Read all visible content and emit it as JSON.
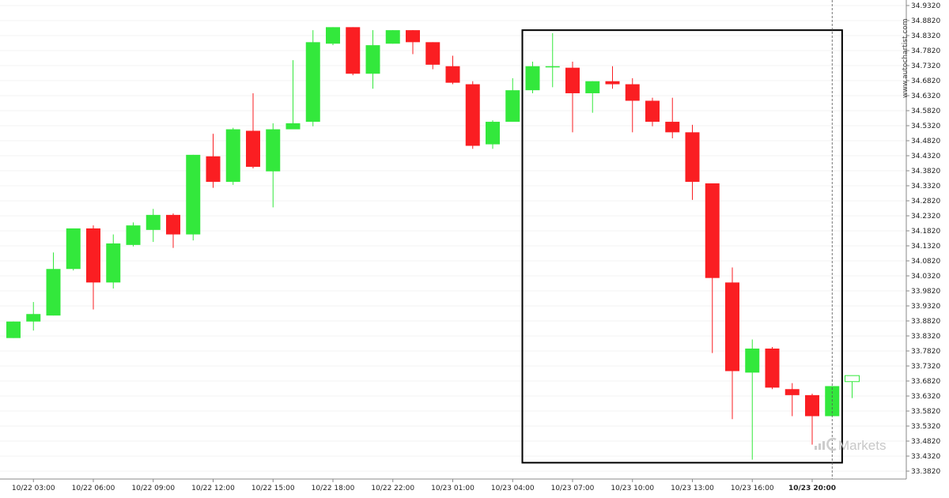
{
  "watermark": "www.autochartist.com",
  "brand": "Markets",
  "colors": {
    "up": "#33e83c",
    "down": "#fa1e22",
    "wick_up": "#33e83c",
    "wick_down": "#fa1e22",
    "box": "#000000",
    "grid": "#e8e8e8"
  },
  "chart_data": {
    "type": "candlestick",
    "title": "",
    "xlabel": "",
    "ylabel": "",
    "ylim": [
      33.37,
      34.93
    ],
    "y_ticks": [
      "34.9320",
      "34.8820",
      "34.8320",
      "34.7820",
      "34.7320",
      "34.6820",
      "34.6320",
      "34.5820",
      "34.5320",
      "34.4820",
      "34.4320",
      "34.3820",
      "34.3320",
      "34.2820",
      "34.2320",
      "34.1820",
      "34.1320",
      "34.0820",
      "34.0320",
      "33.9820",
      "33.9320",
      "33.8820",
      "33.8320",
      "33.7820",
      "33.7320",
      "33.6820",
      "33.6320",
      "33.5820",
      "33.5320",
      "33.4820",
      "33.4320",
      "33.3820"
    ],
    "x_ticks": [
      {
        "label": "10/22 03:00",
        "index": 1
      },
      {
        "label": "10/22 06:00",
        "index": 4
      },
      {
        "label": "10/22 09:00",
        "index": 7
      },
      {
        "label": "10/22 12:00",
        "index": 10
      },
      {
        "label": "10/22 15:00",
        "index": 13
      },
      {
        "label": "10/22 18:00",
        "index": 16
      },
      {
        "label": "10/22 22:00",
        "index": 19
      },
      {
        "label": "10/23 01:00",
        "index": 22
      },
      {
        "label": "10/23 04:00",
        "index": 25
      },
      {
        "label": "10/23 07:00",
        "index": 28
      },
      {
        "label": "10/23 10:00",
        "index": 31
      },
      {
        "label": "10/23 13:00",
        "index": 34
      },
      {
        "label": "10/23 16:00",
        "index": 37
      },
      {
        "label": "10/23 20:00",
        "index": 40,
        "bold": true
      }
    ],
    "candles": [
      {
        "o": 33.825,
        "h": 33.88,
        "l": 33.825,
        "c": 33.88
      },
      {
        "o": 33.88,
        "h": 33.945,
        "l": 33.85,
        "c": 33.905
      },
      {
        "o": 33.9,
        "h": 34.11,
        "l": 33.9,
        "c": 34.055
      },
      {
        "o": 34.055,
        "h": 34.19,
        "l": 34.05,
        "c": 34.19
      },
      {
        "o": 34.19,
        "h": 34.2,
        "l": 33.92,
        "c": 34.01
      },
      {
        "o": 34.01,
        "h": 34.17,
        "l": 33.99,
        "c": 34.14
      },
      {
        "o": 34.135,
        "h": 34.21,
        "l": 34.13,
        "c": 34.2
      },
      {
        "o": 34.185,
        "h": 34.255,
        "l": 34.145,
        "c": 34.235
      },
      {
        "o": 34.235,
        "h": 34.24,
        "l": 34.125,
        "c": 34.17
      },
      {
        "o": 34.17,
        "h": 34.435,
        "l": 34.15,
        "c": 34.435
      },
      {
        "o": 34.43,
        "h": 34.505,
        "l": 34.325,
        "c": 34.345
      },
      {
        "o": 34.345,
        "h": 34.525,
        "l": 34.335,
        "c": 34.52
      },
      {
        "o": 34.515,
        "h": 34.64,
        "l": 34.39,
        "c": 34.395
      },
      {
        "o": 34.38,
        "h": 34.54,
        "l": 34.26,
        "c": 34.52
      },
      {
        "o": 34.52,
        "h": 34.75,
        "l": 34.52,
        "c": 34.54
      },
      {
        "o": 34.545,
        "h": 34.85,
        "l": 34.53,
        "c": 34.81
      },
      {
        "o": 34.805,
        "h": 34.86,
        "l": 34.8,
        "c": 34.86
      },
      {
        "o": 34.86,
        "h": 34.86,
        "l": 34.7,
        "c": 34.705
      },
      {
        "o": 34.705,
        "h": 34.85,
        "l": 34.655,
        "c": 34.8
      },
      {
        "o": 34.805,
        "h": 34.85,
        "l": 34.805,
        "c": 34.85
      },
      {
        "o": 34.85,
        "h": 34.85,
        "l": 34.77,
        "c": 34.81
      },
      {
        "o": 34.81,
        "h": 34.81,
        "l": 34.72,
        "c": 34.735
      },
      {
        "o": 34.73,
        "h": 34.765,
        "l": 34.67,
        "c": 34.675
      },
      {
        "o": 34.67,
        "h": 34.68,
        "l": 34.455,
        "c": 34.465
      },
      {
        "o": 34.47,
        "h": 34.55,
        "l": 34.455,
        "c": 34.545
      },
      {
        "o": 34.545,
        "h": 34.69,
        "l": 34.545,
        "c": 34.65
      },
      {
        "o": 34.65,
        "h": 34.745,
        "l": 34.64,
        "c": 34.73
      },
      {
        "o": 34.73,
        "h": 34.84,
        "l": 34.66,
        "c": 34.73
      },
      {
        "o": 34.725,
        "h": 34.745,
        "l": 34.51,
        "c": 34.64
      },
      {
        "o": 34.64,
        "h": 34.68,
        "l": 34.575,
        "c": 34.68
      },
      {
        "o": 34.68,
        "h": 34.73,
        "l": 34.655,
        "c": 34.67
      },
      {
        "o": 34.67,
        "h": 34.69,
        "l": 34.51,
        "c": 34.615
      },
      {
        "o": 34.615,
        "h": 34.625,
        "l": 34.53,
        "c": 34.545
      },
      {
        "o": 34.545,
        "h": 34.625,
        "l": 34.49,
        "c": 34.51
      },
      {
        "o": 34.51,
        "h": 34.535,
        "l": 34.285,
        "c": 34.345
      },
      {
        "o": 34.34,
        "h": 34.34,
        "l": 33.775,
        "c": 34.025
      },
      {
        "o": 34.01,
        "h": 34.06,
        "l": 33.555,
        "c": 33.715
      },
      {
        "o": 33.71,
        "h": 33.82,
        "l": 33.42,
        "c": 33.79
      },
      {
        "o": 33.79,
        "h": 33.795,
        "l": 33.655,
        "c": 33.66
      },
      {
        "o": 33.655,
        "h": 33.675,
        "l": 33.565,
        "c": 33.635
      },
      {
        "o": 33.635,
        "h": 33.64,
        "l": 33.47,
        "c": 33.565
      },
      {
        "o": 33.565,
        "h": 33.665,
        "l": 33.565,
        "c": 33.665
      },
      {
        "o": 33.68,
        "h": 33.7,
        "l": 33.625,
        "c": 33.7
      }
    ],
    "last_candle_hollow": true,
    "pattern_box": {
      "start_index": 26,
      "end_index": 41.5,
      "high": 34.85,
      "low": 33.41
    },
    "current_time_index": 41
  }
}
